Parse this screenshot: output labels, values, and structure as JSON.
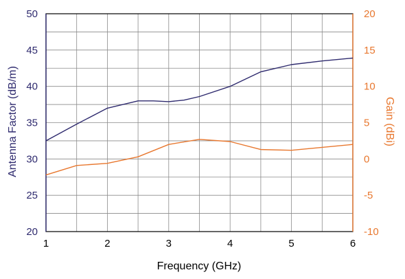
{
  "chart_data": {
    "type": "line",
    "xlabel": "Frequency (GHz)",
    "ylabel_left": "Antenna Factor (dB/m)",
    "ylabel_right": "Gain (dBi)",
    "xlim": [
      1,
      6
    ],
    "ylim_left": [
      20,
      50
    ],
    "ylim_right": [
      -10,
      20
    ],
    "x_ticks": [
      1,
      2,
      3,
      4,
      5,
      6
    ],
    "x_tick_labels": [
      "1",
      "2",
      "3",
      "4",
      "5",
      "6"
    ],
    "y_left_ticks": [
      20,
      25,
      30,
      35,
      40,
      45,
      50
    ],
    "y_left_tick_labels": [
      "20",
      "25",
      "30",
      "35",
      "40",
      "45",
      "50"
    ],
    "y_right_ticks": [
      -10,
      -5,
      0,
      5,
      10,
      15,
      20
    ],
    "y_right_tick_labels": [
      "-10",
      "-5",
      "0",
      "5",
      "10",
      "15",
      "20"
    ],
    "x_minor_step": 0.5,
    "y_minor_step": 2.5,
    "grid": true,
    "colors": {
      "left_axis": "#2e2a6e",
      "right_axis": "#e8772e",
      "grid": "#8a8a8a"
    },
    "series": [
      {
        "axis": "left",
        "color": "#2e2a6e",
        "x": [
          1.0,
          1.5,
          2.0,
          2.5,
          2.75,
          3.0,
          3.25,
          3.5,
          4.0,
          4.5,
          5.0,
          5.5,
          6.0
        ],
        "values": [
          32.5,
          34.8,
          37.0,
          38.0,
          38.0,
          37.9,
          38.1,
          38.6,
          40.0,
          42.0,
          43.0,
          43.5,
          43.9
        ]
      },
      {
        "axis": "right",
        "color": "#e8772e",
        "x": [
          1.0,
          1.5,
          2.0,
          2.5,
          3.0,
          3.5,
          4.0,
          4.5,
          5.0,
          5.5,
          6.0
        ],
        "values": [
          -2.2,
          -0.9,
          -0.6,
          0.3,
          2.0,
          2.7,
          2.4,
          1.3,
          1.2,
          1.6,
          2.0
        ]
      }
    ]
  }
}
